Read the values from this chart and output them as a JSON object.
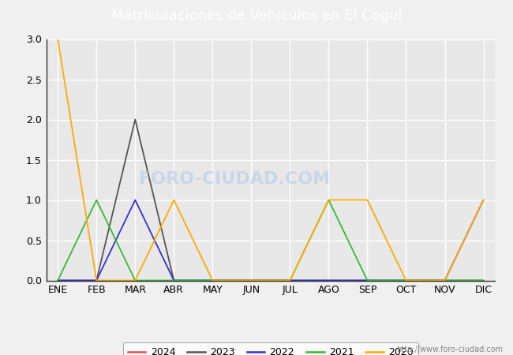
{
  "title": "Matriculaciones de Vehiculos en El Cogul",
  "title_bg_color": "#5585d4",
  "title_text_color": "white",
  "months": [
    "ENE",
    "FEB",
    "MAR",
    "ABR",
    "MAY",
    "JUN",
    "JUL",
    "AGO",
    "SEP",
    "OCT",
    "NOV",
    "DIC"
  ],
  "series": {
    "2024": {
      "color": "#e05050",
      "data": [
        0,
        0,
        0,
        0,
        0,
        0,
        0,
        0,
        0,
        0,
        0,
        0
      ]
    },
    "2023": {
      "color": "#555555",
      "data": [
        0,
        0,
        2,
        0,
        0,
        0,
        0,
        0,
        0,
        0,
        0,
        0
      ]
    },
    "2022": {
      "color": "#3333cc",
      "data": [
        0,
        0,
        1,
        0,
        0,
        0,
        0,
        0,
        0,
        0,
        0,
        1
      ]
    },
    "2021": {
      "color": "#33bb33",
      "data": [
        0,
        1,
        0,
        0,
        0,
        0,
        0,
        1,
        0,
        0,
        0,
        0
      ]
    },
    "2020": {
      "color": "#ffaa00",
      "data": [
        3,
        0,
        0,
        1,
        0,
        0,
        0,
        1,
        1,
        0,
        0,
        1
      ]
    }
  },
  "ylim": [
    0.0,
    3.0
  ],
  "yticks": [
    0.0,
    0.5,
    1.0,
    1.5,
    2.0,
    2.5,
    3.0
  ],
  "watermark": "http://www.foro-ciudad.com",
  "foro_watermark": "FORO-CIUDAD.COM",
  "bg_color": "#ffffff",
  "plot_bg_color": "#e8e8e8",
  "outer_bg_color": "#f0f0f0",
  "grid_color": "#ffffff",
  "legend_order": [
    "2024",
    "2023",
    "2022",
    "2021",
    "2020"
  ],
  "title_font_size": 13,
  "tick_font_size": 9,
  "legend_font_size": 9
}
